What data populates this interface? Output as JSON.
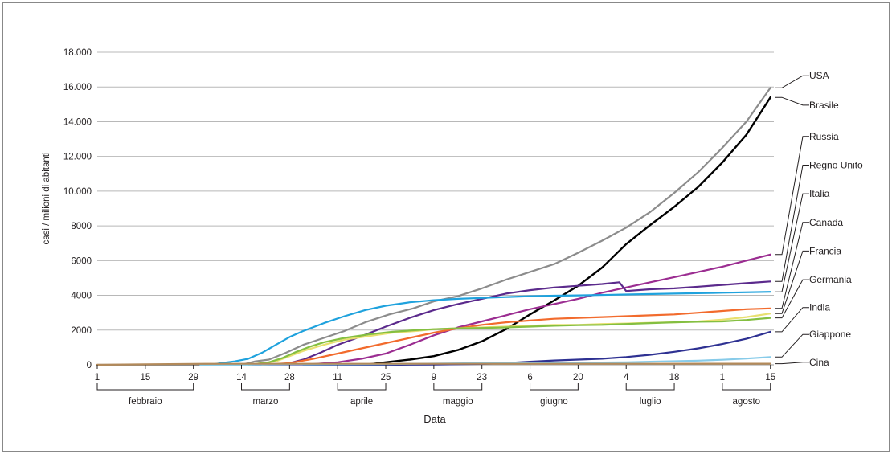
{
  "chart_data": {
    "type": "line",
    "ylabel": "casi / milioni di abitanti",
    "xlabel": "Data",
    "y_ticks": [
      {
        "value": 0,
        "label": "0"
      },
      {
        "value": 2000,
        "label": "2000"
      },
      {
        "value": 4000,
        "label": "4000"
      },
      {
        "value": 6000,
        "label": "6000"
      },
      {
        "value": 8000,
        "label": "8000"
      },
      {
        "value": 10000,
        "label": "10.000"
      },
      {
        "value": 12000,
        "label": "12.000"
      },
      {
        "value": 14000,
        "label": "14.000"
      },
      {
        "value": 16000,
        "label": "16.000"
      },
      {
        "value": 18000,
        "label": "18.000"
      }
    ],
    "ylim": [
      0,
      18000
    ],
    "x_range_days": [
      0,
      197
    ],
    "x_ticks": [
      {
        "day": 0,
        "label": "1"
      },
      {
        "day": 14,
        "label": "15"
      },
      {
        "day": 28,
        "label": "29"
      },
      {
        "day": 42,
        "label": "14"
      },
      {
        "day": 56,
        "label": "28"
      },
      {
        "day": 70,
        "label": "11"
      },
      {
        "day": 84,
        "label": "25"
      },
      {
        "day": 98,
        "label": "9"
      },
      {
        "day": 112,
        "label": "23"
      },
      {
        "day": 126,
        "label": "6"
      },
      {
        "day": 140,
        "label": "20"
      },
      {
        "day": 154,
        "label": "4"
      },
      {
        "day": 168,
        "label": "18"
      },
      {
        "day": 182,
        "label": "1"
      },
      {
        "day": 196,
        "label": "15"
      }
    ],
    "months": [
      {
        "label": "febbraio",
        "from": 0,
        "to": 28
      },
      {
        "label": "marzo",
        "from": 42,
        "to": 56
      },
      {
        "label": "aprile",
        "from": 70,
        "to": 84
      },
      {
        "label": "maggio",
        "from": 98,
        "to": 112
      },
      {
        "label": "giugno",
        "from": 126,
        "to": 140
      },
      {
        "label": "luglio",
        "from": 154,
        "to": 168
      },
      {
        "label": "agosto",
        "from": 182,
        "to": 196
      }
    ],
    "grid": true,
    "legend_placement": "right (labels at line ends)",
    "series": [
      {
        "name": "USA",
        "color": "#8c8c8c",
        "points": [
          [
            0,
            0
          ],
          [
            42,
            0
          ],
          [
            46,
            200
          ],
          [
            50,
            300
          ],
          [
            55,
            700
          ],
          [
            60,
            1150
          ],
          [
            66,
            1550
          ],
          [
            72,
            1950
          ],
          [
            78,
            2450
          ],
          [
            85,
            2900
          ],
          [
            92,
            3250
          ],
          [
            98,
            3650
          ],
          [
            105,
            3950
          ],
          [
            112,
            4400
          ],
          [
            119,
            4900
          ],
          [
            126,
            5350
          ],
          [
            133,
            5800
          ],
          [
            140,
            6450
          ],
          [
            147,
            7150
          ],
          [
            154,
            7900
          ],
          [
            161,
            8800
          ],
          [
            168,
            9900
          ],
          [
            175,
            11100
          ],
          [
            182,
            12500
          ],
          [
            189,
            14000
          ],
          [
            196,
            15950
          ]
        ]
      },
      {
        "name": "Brasile",
        "color": "#000000",
        "points": [
          [
            78,
            0
          ],
          [
            84,
            150
          ],
          [
            91,
            300
          ],
          [
            98,
            500
          ],
          [
            105,
            850
          ],
          [
            112,
            1350
          ],
          [
            119,
            2050
          ],
          [
            126,
            2900
          ],
          [
            133,
            3700
          ],
          [
            140,
            4550
          ],
          [
            147,
            5600
          ],
          [
            154,
            6950
          ],
          [
            161,
            8050
          ],
          [
            168,
            9100
          ],
          [
            175,
            10250
          ],
          [
            182,
            11650
          ],
          [
            189,
            13250
          ],
          [
            196,
            15400
          ]
        ]
      },
      {
        "name": "Russia",
        "color": "#9b2d91",
        "points": [
          [
            45,
            0
          ],
          [
            60,
            0
          ],
          [
            70,
            150
          ],
          [
            77,
            350
          ],
          [
            84,
            650
          ],
          [
            91,
            1150
          ],
          [
            98,
            1700
          ],
          [
            105,
            2150
          ],
          [
            112,
            2500
          ],
          [
            119,
            2850
          ],
          [
            126,
            3200
          ],
          [
            133,
            3500
          ],
          [
            140,
            3800
          ],
          [
            147,
            4150
          ],
          [
            154,
            4450
          ],
          [
            161,
            4750
          ],
          [
            168,
            5050
          ],
          [
            175,
            5350
          ],
          [
            182,
            5650
          ],
          [
            189,
            6000
          ],
          [
            196,
            6350
          ]
        ]
      },
      {
        "name": "Regno Unito",
        "color": "#5b2a8c",
        "points": [
          [
            46,
            0
          ],
          [
            55,
            50
          ],
          [
            60,
            300
          ],
          [
            65,
            700
          ],
          [
            70,
            1150
          ],
          [
            77,
            1650
          ],
          [
            84,
            2200
          ],
          [
            91,
            2700
          ],
          [
            98,
            3150
          ],
          [
            105,
            3500
          ],
          [
            112,
            3800
          ],
          [
            119,
            4100
          ],
          [
            126,
            4300
          ],
          [
            133,
            4450
          ],
          [
            140,
            4550
          ],
          [
            147,
            4650
          ],
          [
            152,
            4750
          ],
          [
            154,
            4250
          ],
          [
            161,
            4350
          ],
          [
            168,
            4400
          ],
          [
            175,
            4500
          ],
          [
            182,
            4600
          ],
          [
            189,
            4700
          ],
          [
            196,
            4800
          ]
        ]
      },
      {
        "name": "Italia",
        "color": "#1fa2dd",
        "points": [
          [
            33,
            0
          ],
          [
            36,
            100
          ],
          [
            40,
            200
          ],
          [
            44,
            350
          ],
          [
            48,
            700
          ],
          [
            52,
            1150
          ],
          [
            56,
            1600
          ],
          [
            60,
            1950
          ],
          [
            66,
            2400
          ],
          [
            72,
            2800
          ],
          [
            78,
            3150
          ],
          [
            84,
            3400
          ],
          [
            91,
            3600
          ],
          [
            98,
            3720
          ],
          [
            105,
            3800
          ],
          [
            112,
            3850
          ],
          [
            119,
            3900
          ],
          [
            126,
            3950
          ],
          [
            133,
            3980
          ],
          [
            140,
            4000
          ],
          [
            154,
            4050
          ],
          [
            168,
            4100
          ],
          [
            182,
            4150
          ],
          [
            196,
            4200
          ]
        ]
      },
      {
        "name": "Canada",
        "color": "#f26b2d",
        "points": [
          [
            48,
            0
          ],
          [
            56,
            100
          ],
          [
            63,
            350
          ],
          [
            70,
            650
          ],
          [
            77,
            950
          ],
          [
            84,
            1250
          ],
          [
            91,
            1550
          ],
          [
            98,
            1850
          ],
          [
            105,
            2100
          ],
          [
            112,
            2300
          ],
          [
            119,
            2450
          ],
          [
            126,
            2550
          ],
          [
            133,
            2650
          ],
          [
            140,
            2700
          ],
          [
            147,
            2750
          ],
          [
            154,
            2800
          ],
          [
            161,
            2850
          ],
          [
            168,
            2900
          ],
          [
            175,
            3000
          ],
          [
            182,
            3100
          ],
          [
            189,
            3200
          ],
          [
            196,
            3250
          ]
        ]
      },
      {
        "name": "Francia",
        "color": "#e8e070",
        "points": [
          [
            44,
            0
          ],
          [
            52,
            200
          ],
          [
            56,
            500
          ],
          [
            60,
            800
          ],
          [
            66,
            1150
          ],
          [
            72,
            1450
          ],
          [
            79,
            1650
          ],
          [
            86,
            1850
          ],
          [
            93,
            1950
          ],
          [
            98,
            2050
          ],
          [
            105,
            2100
          ],
          [
            112,
            2150
          ],
          [
            119,
            2200
          ],
          [
            126,
            2250
          ],
          [
            133,
            2300
          ],
          [
            140,
            2300
          ],
          [
            147,
            2350
          ],
          [
            154,
            2380
          ],
          [
            161,
            2420
          ],
          [
            168,
            2450
          ],
          [
            175,
            2500
          ],
          [
            182,
            2600
          ],
          [
            189,
            2750
          ],
          [
            196,
            2950
          ]
        ]
      },
      {
        "name": "Germania",
        "color": "#84bf41",
        "points": [
          [
            44,
            0
          ],
          [
            50,
            150
          ],
          [
            54,
            400
          ],
          [
            58,
            750
          ],
          [
            62,
            1050
          ],
          [
            66,
            1300
          ],
          [
            72,
            1550
          ],
          [
            79,
            1750
          ],
          [
            86,
            1900
          ],
          [
            93,
            2000
          ],
          [
            98,
            2050
          ],
          [
            105,
            2100
          ],
          [
            112,
            2120
          ],
          [
            119,
            2150
          ],
          [
            126,
            2200
          ],
          [
            133,
            2250
          ],
          [
            140,
            2280
          ],
          [
            147,
            2300
          ],
          [
            154,
            2350
          ],
          [
            161,
            2400
          ],
          [
            168,
            2450
          ],
          [
            175,
            2480
          ],
          [
            182,
            2500
          ],
          [
            189,
            2580
          ],
          [
            196,
            2700
          ]
        ]
      },
      {
        "name": "India",
        "color": "#2e3192",
        "points": [
          [
            60,
            0
          ],
          [
            84,
            0
          ],
          [
            98,
            20
          ],
          [
            112,
            50
          ],
          [
            119,
            100
          ],
          [
            126,
            180
          ],
          [
            133,
            250
          ],
          [
            140,
            300
          ],
          [
            147,
            350
          ],
          [
            154,
            450
          ],
          [
            161,
            580
          ],
          [
            168,
            750
          ],
          [
            175,
            950
          ],
          [
            182,
            1200
          ],
          [
            189,
            1500
          ],
          [
            196,
            1900
          ]
        ]
      },
      {
        "name": "Giappone",
        "color": "#87cbe9",
        "points": [
          [
            30,
            0
          ],
          [
            84,
            40
          ],
          [
            112,
            100
          ],
          [
            140,
            120
          ],
          [
            154,
            150
          ],
          [
            161,
            180
          ],
          [
            168,
            210
          ],
          [
            175,
            240
          ],
          [
            182,
            290
          ],
          [
            189,
            360
          ],
          [
            196,
            450
          ]
        ]
      },
      {
        "name": "Cina",
        "color": "#b38a5a",
        "points": [
          [
            0,
            5
          ],
          [
            14,
            30
          ],
          [
            28,
            55
          ],
          [
            42,
            60
          ],
          [
            70,
            60
          ],
          [
            98,
            60
          ],
          [
            126,
            62
          ],
          [
            154,
            62
          ],
          [
            182,
            63
          ],
          [
            196,
            64
          ]
        ]
      }
    ],
    "legend_labels": [
      {
        "name": "USA",
        "label_value": 16650
      },
      {
        "name": "Brasile",
        "label_value": 14950
      },
      {
        "name": "Russia",
        "label_value": 13150
      },
      {
        "name": "Regno Unito",
        "label_value": 11500
      },
      {
        "name": "Italia",
        "label_value": 9850
      },
      {
        "name": "Canada",
        "label_value": 8200
      },
      {
        "name": "Francia",
        "label_value": 6550
      },
      {
        "name": "Germania",
        "label_value": 4900
      },
      {
        "name": "India",
        "label_value": 3300
      },
      {
        "name": "Giappone",
        "label_value": 1750
      },
      {
        "name": "Cina",
        "label_value": 150
      }
    ]
  }
}
